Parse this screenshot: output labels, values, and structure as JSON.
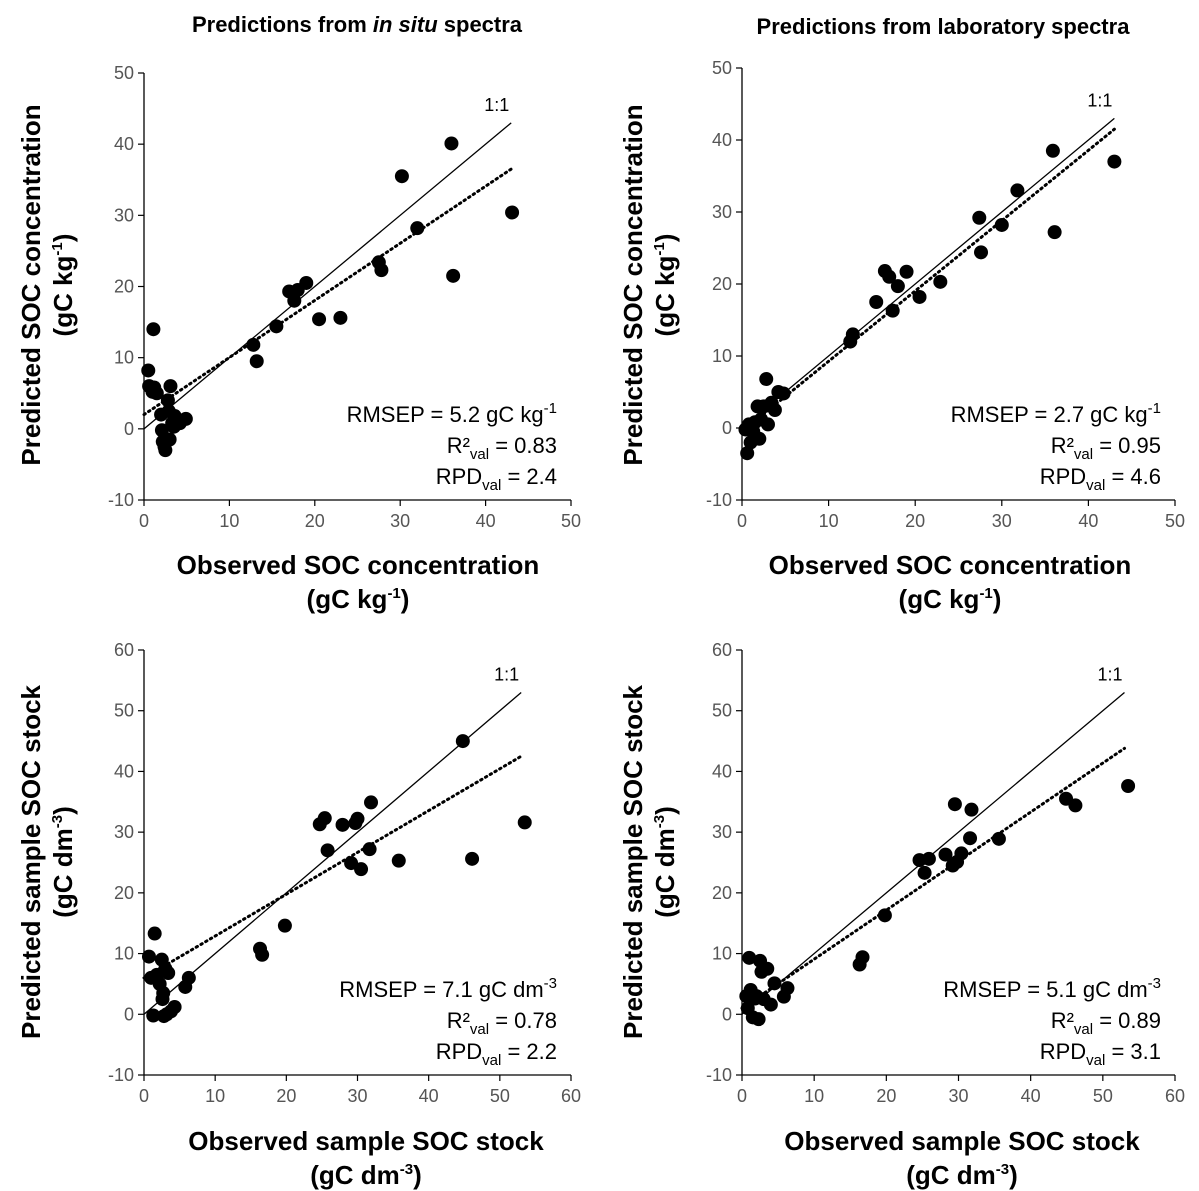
{
  "column_titles": {
    "left": {
      "prefix": "Predictions from ",
      "italic": "in situ",
      "suffix": " spectra"
    },
    "right": "Predictions from laboratory spectra"
  },
  "chart_data": [
    {
      "type": "scatter",
      "id": "conc_insitu",
      "xlabel": {
        "line1": "Observed SOC concentration",
        "line2_pre": "(gC kg",
        "line2_sup": "-1",
        "line2_post": ")"
      },
      "ylabel": {
        "line1": "Predicted SOC concentration",
        "line2_pre": "(gC kg",
        "line2_sup": "-1",
        "line2_post": ")"
      },
      "xlim": [
        0,
        50
      ],
      "ylim": [
        -10,
        50
      ],
      "xticks": [
        "0",
        "10",
        "20",
        "30",
        "40",
        "50"
      ],
      "yticks": [
        "-10",
        "0",
        "10",
        "20",
        "30",
        "40",
        "50"
      ],
      "grid": false,
      "one_to_one_label": "1:1",
      "one_to_one": [
        [
          0,
          0
        ],
        [
          43,
          43
        ]
      ],
      "fit_line": [
        [
          0,
          2
        ],
        [
          43,
          36.5
        ]
      ],
      "stats": {
        "rmsep_pre": "RMSEP = 5.2 gC kg",
        "rmsep_sup": "-1",
        "r2_pre": "R²",
        "r2_sub": "val",
        "r2_post": " = 0.83",
        "rpd_pre": "RPD",
        "rpd_sub": "val",
        "rpd_post": " = 2.4"
      },
      "points": [
        [
          0.5,
          8.2
        ],
        [
          0.6,
          6
        ],
        [
          1,
          5.2
        ],
        [
          1.1,
          14
        ],
        [
          1.2,
          5.8
        ],
        [
          1.5,
          5
        ],
        [
          2,
          2
        ],
        [
          2.1,
          -0.2
        ],
        [
          2.2,
          -1.8
        ],
        [
          2.4,
          -2.5
        ],
        [
          2.5,
          -3
        ],
        [
          2.8,
          4
        ],
        [
          2.9,
          2.5
        ],
        [
          3,
          -1.5
        ],
        [
          3.1,
          6
        ],
        [
          3.3,
          0.8
        ],
        [
          3.5,
          0.3
        ],
        [
          3.6,
          1.8
        ],
        [
          4.2,
          0.8
        ],
        [
          4.9,
          1.4
        ],
        [
          12.8,
          11.8
        ],
        [
          13.2,
          9.5
        ],
        [
          15.5,
          14.4
        ],
        [
          17,
          19.3
        ],
        [
          17.6,
          18
        ],
        [
          18,
          19.5
        ],
        [
          19,
          20.5
        ],
        [
          20.5,
          15.4
        ],
        [
          23,
          15.6
        ],
        [
          27.5,
          23.4
        ],
        [
          27.8,
          22.3
        ],
        [
          30.2,
          35.5
        ],
        [
          32,
          28.2
        ],
        [
          36,
          40.1
        ],
        [
          36.2,
          21.5
        ],
        [
          43.1,
          30.4
        ]
      ]
    },
    {
      "type": "scatter",
      "id": "conc_lab",
      "xlabel": {
        "line1": "Observed SOC concentration",
        "line2_pre": "(gC kg",
        "line2_sup": "-1",
        "line2_post": ")"
      },
      "ylabel": {
        "line1": "Predicted SOC concentration",
        "line2_pre": "(gC kg",
        "line2_sup": "-1",
        "line2_post": ")"
      },
      "xlim": [
        0,
        50
      ],
      "ylim": [
        -10,
        50
      ],
      "xticks": [
        "0",
        "10",
        "20",
        "30",
        "40",
        "50"
      ],
      "yticks": [
        "-10",
        "0",
        "10",
        "20",
        "30",
        "40",
        "50"
      ],
      "grid": false,
      "one_to_one_label": "1:1",
      "one_to_one": [
        [
          0,
          0
        ],
        [
          43,
          43
        ]
      ],
      "fit_line": [
        [
          0,
          -0.5
        ],
        [
          43,
          41.5
        ]
      ],
      "stats": {
        "rmsep_pre": "RMSEP = 2.7 gC kg",
        "rmsep_sup": "-1",
        "r2_pre": "R²",
        "r2_sub": "val",
        "r2_post": " = 0.95",
        "rpd_pre": "RPD",
        "rpd_sub": "val",
        "rpd_post": " = 4.6"
      },
      "points": [
        [
          0.4,
          -0.2
        ],
        [
          0.6,
          -3.5
        ],
        [
          0.8,
          0.5
        ],
        [
          1,
          -2
        ],
        [
          1.3,
          -0.5
        ],
        [
          1.5,
          0.8
        ],
        [
          1.8,
          3
        ],
        [
          2,
          -1.5
        ],
        [
          2.2,
          1.2
        ],
        [
          2.5,
          3
        ],
        [
          2.8,
          6.8
        ],
        [
          3,
          0.5
        ],
        [
          3.4,
          3.5
        ],
        [
          3.8,
          2.5
        ],
        [
          4.2,
          5
        ],
        [
          4.8,
          4.8
        ],
        [
          12.5,
          12
        ],
        [
          12.8,
          13
        ],
        [
          15.5,
          17.5
        ],
        [
          16.5,
          21.8
        ],
        [
          17,
          21
        ],
        [
          17.4,
          16.3
        ],
        [
          18,
          19.7
        ],
        [
          19,
          21.7
        ],
        [
          20.5,
          18.2
        ],
        [
          22.9,
          20.3
        ],
        [
          27.4,
          29.2
        ],
        [
          27.6,
          24.4
        ],
        [
          30,
          28.2
        ],
        [
          31.8,
          33
        ],
        [
          35.9,
          38.5
        ],
        [
          36.1,
          27.2
        ],
        [
          43,
          37
        ]
      ]
    },
    {
      "type": "scatter",
      "id": "stock_insitu",
      "xlabel": {
        "line1": "Observed sample SOC stock",
        "line2_pre": "(gC dm",
        "line2_sup": "-3",
        "line2_post": ")"
      },
      "ylabel": {
        "line1": "Predicted sample SOC stock",
        "line2_pre": "(gC dm",
        "line2_sup": "-3",
        "line2_post": ")"
      },
      "xlim": [
        0,
        60
      ],
      "ylim": [
        -10,
        60
      ],
      "xticks": [
        "0",
        "10",
        "20",
        "30",
        "40",
        "50",
        "60"
      ],
      "yticks": [
        "-10",
        "0",
        "10",
        "20",
        "30",
        "40",
        "50",
        "60"
      ],
      "grid": false,
      "one_to_one_label": "1:1",
      "one_to_one": [
        [
          0,
          0
        ],
        [
          53,
          53
        ]
      ],
      "fit_line": [
        [
          0,
          6
        ],
        [
          53,
          42.5
        ]
      ],
      "stats": {
        "rmsep_pre": "RMSEP = 7.1 gC dm",
        "rmsep_sup": "-3",
        "r2_pre": "R²",
        "r2_sub": "val",
        "r2_post": " = 0.78",
        "rpd_pre": "RPD",
        "rpd_sub": "val",
        "rpd_post": " = 2.2"
      },
      "points": [
        [
          0.7,
          9.5
        ],
        [
          1,
          6
        ],
        [
          1.3,
          -0.2
        ],
        [
          1.5,
          13.3
        ],
        [
          1.8,
          6.5
        ],
        [
          2.2,
          5
        ],
        [
          2.5,
          9
        ],
        [
          2.6,
          2.5
        ],
        [
          2.7,
          3.5
        ],
        [
          2.8,
          -0.3
        ],
        [
          3,
          7.5
        ],
        [
          3.2,
          0
        ],
        [
          3.4,
          6.8
        ],
        [
          3.8,
          0.5
        ],
        [
          4.3,
          1.2
        ],
        [
          5.8,
          4.5
        ],
        [
          6.3,
          6
        ],
        [
          16.3,
          10.8
        ],
        [
          16.6,
          9.8
        ],
        [
          19.8,
          14.6
        ],
        [
          24.7,
          31.3
        ],
        [
          25.4,
          32.3
        ],
        [
          25.8,
          27
        ],
        [
          27.9,
          31.2
        ],
        [
          29.1,
          24.9
        ],
        [
          29.7,
          31.5
        ],
        [
          30,
          32.2
        ],
        [
          30.5,
          23.9
        ],
        [
          31.7,
          27.2
        ],
        [
          31.9,
          34.9
        ],
        [
          35.8,
          25.3
        ],
        [
          44.8,
          45
        ],
        [
          46.1,
          25.6
        ],
        [
          53.5,
          31.6
        ]
      ]
    },
    {
      "type": "scatter",
      "id": "stock_lab",
      "xlabel": {
        "line1": "Observed sample SOC stock",
        "line2_pre": "(gC dm",
        "line2_sup": "-3",
        "line2_post": ")"
      },
      "ylabel": {
        "line1": "Predicted sample SOC stock",
        "line2_pre": "(gC dm",
        "line2_sup": "-3",
        "line2_post": ")"
      },
      "xlim": [
        0,
        60
      ],
      "ylim": [
        -10,
        60
      ],
      "xticks": [
        "0",
        "10",
        "20",
        "30",
        "40",
        "50",
        "60"
      ],
      "yticks": [
        "-10",
        "0",
        "10",
        "20",
        "30",
        "40",
        "50",
        "60"
      ],
      "grid": false,
      "one_to_one_label": "1:1",
      "one_to_one": [
        [
          0,
          0
        ],
        [
          53,
          53
        ]
      ],
      "fit_line": [
        [
          0,
          1
        ],
        [
          53,
          43.8
        ]
      ],
      "stats": {
        "rmsep_pre": "RMSEP = 5.1 gC dm",
        "rmsep_sup": "-3",
        "r2_pre": "R²",
        "r2_sub": "val",
        "r2_post": " = 0.89",
        "rpd_pre": "RPD",
        "rpd_sub": "val",
        "rpd_post": " = 3.1"
      },
      "points": [
        [
          0.6,
          3
        ],
        [
          0.8,
          1
        ],
        [
          1,
          9.3
        ],
        [
          1.2,
          4
        ],
        [
          1.5,
          -0.5
        ],
        [
          1.8,
          2.6
        ],
        [
          2,
          3
        ],
        [
          2.3,
          -0.8
        ],
        [
          2.5,
          8.8
        ],
        [
          2.7,
          7
        ],
        [
          3,
          2.5
        ],
        [
          3.5,
          7.5
        ],
        [
          4,
          1.6
        ],
        [
          4.5,
          5.1
        ],
        [
          5.8,
          2.9
        ],
        [
          6.3,
          4.3
        ],
        [
          16.3,
          8.2
        ],
        [
          16.7,
          9.4
        ],
        [
          19.8,
          16.3
        ],
        [
          24.6,
          25.4
        ],
        [
          25.3,
          23.3
        ],
        [
          25.9,
          25.6
        ],
        [
          28.2,
          26.3
        ],
        [
          29.2,
          24.5
        ],
        [
          29.5,
          34.6
        ],
        [
          29.8,
          25.1
        ],
        [
          30.4,
          26.5
        ],
        [
          31.6,
          29
        ],
        [
          31.8,
          33.7
        ],
        [
          35.6,
          28.9
        ],
        [
          44.9,
          35.5
        ],
        [
          46.2,
          34.4
        ],
        [
          53.5,
          37.6
        ]
      ]
    }
  ]
}
